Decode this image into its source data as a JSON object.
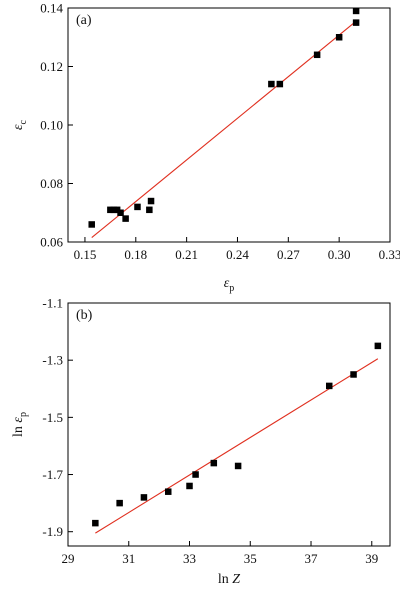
{
  "chart_data": [
    {
      "type": "scatter",
      "panel_label": "(a)",
      "xlabel": "ε_p",
      "ylabel": "ε_c",
      "xlim": [
        0.14,
        0.33
      ],
      "ylim": [
        0.06,
        0.14
      ],
      "xticks": [
        0.15,
        0.18,
        0.21,
        0.24,
        0.27,
        0.3,
        0.33
      ],
      "xtick_labels": [
        "0.15",
        "0.18",
        "0.21",
        "0.24",
        "0.27",
        "0.30",
        "0.33"
      ],
      "yticks": [
        0.06,
        0.08,
        0.1,
        0.12,
        0.14
      ],
      "ytick_labels": [
        "0.06",
        "0.08",
        "0.10",
        "0.12",
        "0.14"
      ],
      "grid": false,
      "marker_color": "#000000",
      "fit_color": "#e03020",
      "points": {
        "x": [
          0.154,
          0.165,
          0.167,
          0.169,
          0.171,
          0.174,
          0.181,
          0.188,
          0.189,
          0.26,
          0.265,
          0.287,
          0.3,
          0.31,
          0.31
        ],
        "y": [
          0.066,
          0.071,
          0.071,
          0.071,
          0.07,
          0.068,
          0.072,
          0.071,
          0.074,
          0.114,
          0.114,
          0.124,
          0.13,
          0.135,
          0.139
        ]
      },
      "fit_line": {
        "x": [
          0.154,
          0.31
        ],
        "y": [
          0.0615,
          0.1355
        ]
      }
    },
    {
      "type": "scatter",
      "panel_label": "(b)",
      "xlabel": "ln Z",
      "ylabel": "ln ε_p",
      "xlim": [
        29,
        39.6
      ],
      "ylim": [
        -1.95,
        -1.1
      ],
      "xticks": [
        29,
        31,
        33,
        35,
        37,
        39
      ],
      "xtick_labels": [
        "29",
        "31",
        "33",
        "35",
        "37",
        "39"
      ],
      "yticks": [
        -1.9,
        -1.7,
        -1.5,
        -1.3,
        -1.1
      ],
      "ytick_labels": [
        "-1.9",
        "-1.7",
        "-1.5",
        "-1.3",
        "-1.1"
      ],
      "grid": false,
      "marker_color": "#000000",
      "fit_color": "#e03020",
      "points": {
        "x": [
          29.9,
          30.7,
          31.5,
          32.3,
          33.0,
          33.2,
          33.8,
          34.6,
          37.6,
          38.4,
          39.2
        ],
        "y": [
          -1.87,
          -1.8,
          -1.78,
          -1.76,
          -1.74,
          -1.7,
          -1.66,
          -1.67,
          -1.39,
          -1.35,
          -1.25
        ]
      },
      "fit_line": {
        "x": [
          29.9,
          39.2
        ],
        "y": [
          -1.905,
          -1.295
        ]
      }
    }
  ]
}
